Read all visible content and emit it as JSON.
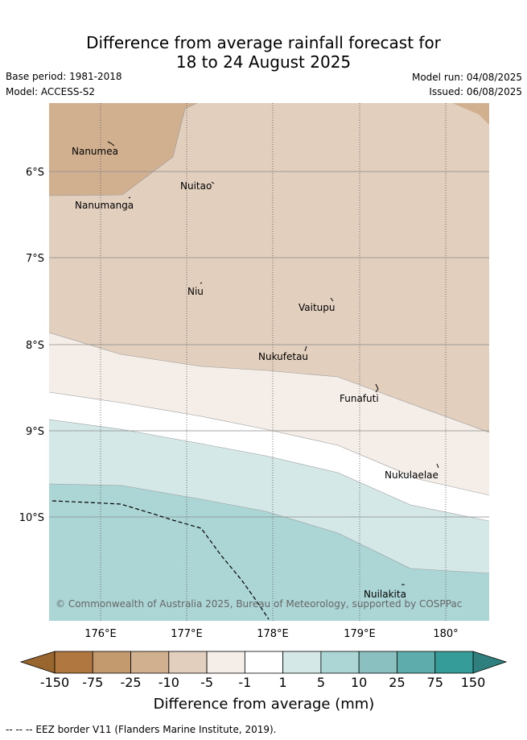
{
  "title": {
    "line1": "Difference from average rainfall forecast for",
    "line2": "18 to 24 August 2025"
  },
  "meta": {
    "base_period": "Base period: 1981-2018",
    "model": "Model: ACCESS-S2",
    "model_run": "Model run: 04/08/2025",
    "issued": "Issued: 06/08/2025"
  },
  "map": {
    "lat_labels": [
      "6°S",
      "7°S",
      "8°S",
      "9°S",
      "10°S"
    ],
    "lon_labels": [
      "176°E",
      "177°E",
      "178°E",
      "179°E",
      "180°"
    ],
    "places": [
      "Nanumea",
      "Nuitao",
      "Nanumanga",
      "Niu",
      "Vaitupu",
      "Nukufetau",
      "Funafuti",
      "Nukulaelae",
      "Nuilakita"
    ],
    "copyright": "© Commonwealth of Australia 2025, Bureau of Meteorology, supported by COSPPac"
  },
  "colorbar": {
    "ticks": [
      "-150",
      "-75",
      "-25",
      "-10",
      "-5",
      "-1",
      "1",
      "5",
      "10",
      "25",
      "75",
      "150"
    ],
    "colors": [
      "#b07840",
      "#c29a6e",
      "#d1b090",
      "#e2cfbe",
      "#f5ede8",
      "#ffffff",
      "#d4e8e8",
      "#acd6d6",
      "#8ac1c0",
      "#5eadac",
      "#369c9a"
    ],
    "low_color": "#9a6630",
    "high_color": "#2e7f7e",
    "title": "Difference from average (mm)"
  },
  "footer": "-- -- -- EEZ border V11 (Flanders Marine Institute, 2019)."
}
